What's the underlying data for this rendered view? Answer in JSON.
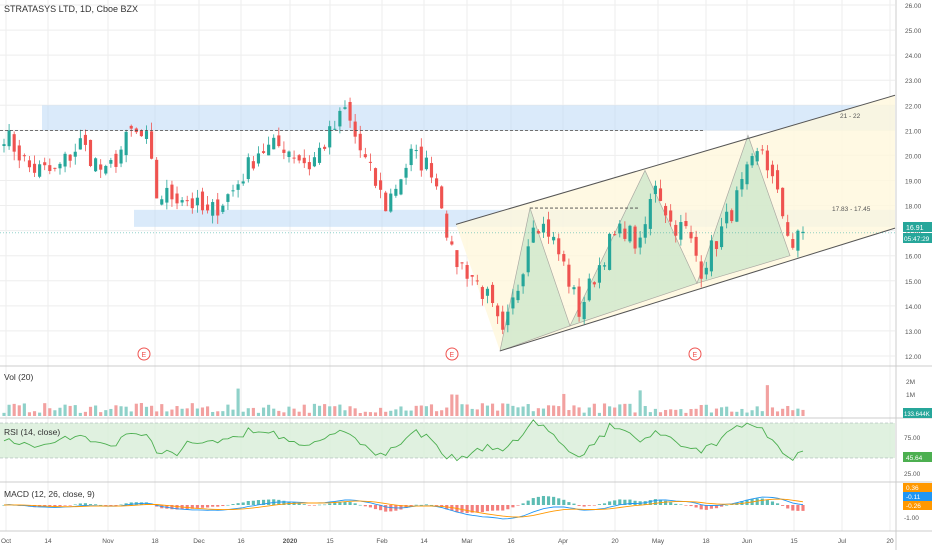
{
  "title": "STRATASYS LTD, 1D, Cboe BZX",
  "colors": {
    "up": "#26a69a",
    "down": "#ef5350",
    "up_vol": "#8fd1c9",
    "down_vol": "#f2a1a0",
    "zone_blue": "#bbd8f5",
    "channel_fill": "#fff8dc",
    "pattern_fill": "#c8e6c9",
    "rsi_band": "#d8eed8",
    "rsi_line": "#4caf50",
    "macd_line": "#2196f3",
    "signal_line": "#ff9800",
    "axis_text": "#555555",
    "grid": "#eeeeee"
  },
  "x_axis_labels": [
    "Oct",
    "14",
    "Nov",
    "18",
    "Dec",
    "16",
    "2020",
    "15",
    "Feb",
    "14",
    "Mar",
    "16",
    "Apr",
    "20",
    "May",
    "18",
    "Jun",
    "15",
    "Jul",
    "20"
  ],
  "chart_data": [
    {
      "type": "candlestick",
      "panel": "price",
      "title": "STRATASYS LTD, 1D, Cboe BZX",
      "y_ticks": [
        "26.00",
        "25.00",
        "24.00",
        "23.00",
        "22.00",
        "21.00",
        "20.00",
        "19.00",
        "18.00",
        "17.00",
        "16.00",
        "15.00",
        "14.00",
        "13.00",
        "12.00"
      ],
      "ylim": [
        11.6,
        26.2
      ],
      "zone_labels": [
        "21 - 22",
        "17.83 - 17.45"
      ],
      "last_price": "16.91",
      "countdown": "05:47:29",
      "earnings_markers": [
        "E",
        "E",
        "E"
      ],
      "close_path": [
        {
          "d": 0,
          "c": 20.9
        },
        {
          "d": 5,
          "c": 19.5
        },
        {
          "d": 10,
          "c": 19.3
        },
        {
          "d": 15,
          "c": 20.5
        },
        {
          "d": 20,
          "c": 19.2
        },
        {
          "d": 25,
          "c": 20.9
        },
        {
          "d": 28,
          "c": 20.6
        },
        {
          "d": 30,
          "c": 18.4
        },
        {
          "d": 35,
          "c": 18.4
        },
        {
          "d": 40,
          "c": 17.6
        },
        {
          "d": 45,
          "c": 18.6
        },
        {
          "d": 50,
          "c": 20.2
        },
        {
          "d": 55,
          "c": 20.4
        },
        {
          "d": 60,
          "c": 19.6
        },
        {
          "d": 65,
          "c": 21.1
        },
        {
          "d": 67,
          "c": 21.8
        },
        {
          "d": 70,
          "c": 20.2
        },
        {
          "d": 75,
          "c": 18.0
        },
        {
          "d": 80,
          "c": 20.0
        },
        {
          "d": 84,
          "c": 19.5
        },
        {
          "d": 86,
          "c": 18.2
        },
        {
          "d": 88,
          "c": 16.0
        },
        {
          "d": 92,
          "c": 15.2
        },
        {
          "d": 95,
          "c": 14.3
        },
        {
          "d": 98,
          "c": 12.7
        },
        {
          "d": 101,
          "c": 14.8
        },
        {
          "d": 104,
          "c": 17.5
        },
        {
          "d": 107,
          "c": 17.0
        },
        {
          "d": 110,
          "c": 15.6
        },
        {
          "d": 113,
          "c": 13.8
        },
        {
          "d": 116,
          "c": 15.2
        },
        {
          "d": 119,
          "c": 16.5
        },
        {
          "d": 122,
          "c": 17.1
        },
        {
          "d": 125,
          "c": 16.3
        },
        {
          "d": 128,
          "c": 19.0
        },
        {
          "d": 131,
          "c": 17.3
        },
        {
          "d": 134,
          "c": 17.0
        },
        {
          "d": 137,
          "c": 15.5
        },
        {
          "d": 140,
          "c": 16.6
        },
        {
          "d": 143,
          "c": 17.8
        },
        {
          "d": 146,
          "c": 19.2
        },
        {
          "d": 149,
          "c": 20.3
        },
        {
          "d": 152,
          "c": 18.3
        },
        {
          "d": 155,
          "c": 16.4
        },
        {
          "d": 157,
          "c": 16.9
        }
      ],
      "series": [
        {
          "name": "Candles",
          "source": "close_path"
        }
      ]
    },
    {
      "type": "bar",
      "panel": "volume",
      "title": "Vol (20)",
      "y_ticks": [
        "2M",
        "1M"
      ],
      "last_value": "133.644K"
    },
    {
      "type": "line",
      "panel": "rsi",
      "title": "RSI (14, close)",
      "y_ticks": [
        "75.00",
        "25.00"
      ],
      "last_value": "45.64"
    },
    {
      "type": "line",
      "panel": "macd",
      "title": "MACD (12, 26, close, 9)",
      "y_ticks": [
        "-1.00"
      ],
      "last_values": [
        "0.36",
        "-0.11",
        "-0.26"
      ]
    }
  ]
}
